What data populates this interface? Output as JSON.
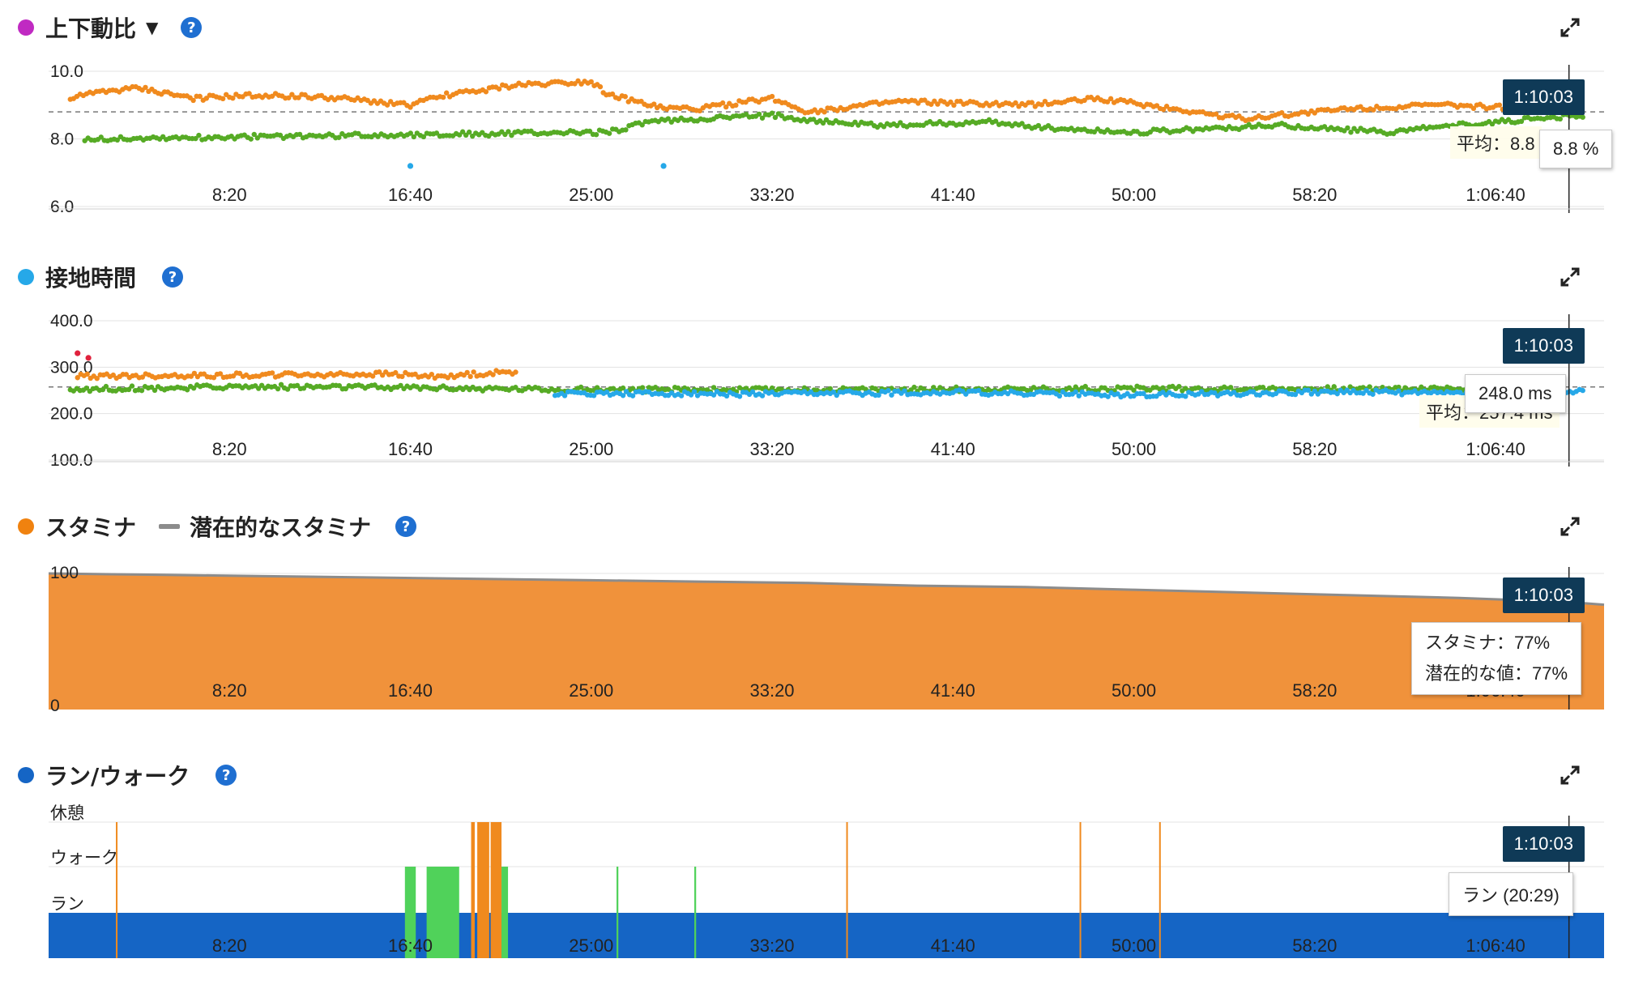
{
  "time_badge": "1:10:03",
  "x_ticks": [
    "8:20",
    "16:40",
    "25:00",
    "33:20",
    "41:40",
    "50:00",
    "58:20",
    "1:06:40"
  ],
  "colors": {
    "orange": "#f08a1e",
    "green": "#56ab25",
    "blue": "#26a8e8",
    "stamina": "#f0923b",
    "walk_green": "#50d25a",
    "run_blue": "#1565c5",
    "help": "#1f6fd1",
    "badge": "#0f3a57"
  },
  "panels": {
    "vo_ratio": {
      "title": "上下動比",
      "dot_color": "#c02ac2",
      "avg_label": "平均：8.8",
      "tooltip": "8.8 %"
    },
    "gct": {
      "title": "接地時間",
      "dot_color": "#26a8e8",
      "avg_label": "平均：257.4 ms",
      "tooltip": "248.0 ms"
    },
    "stamina": {
      "title": "スタミナ",
      "title2": "潜在的なスタミナ",
      "dot_color": "#f0820f",
      "tooltip_line1": "スタミナ：77%",
      "tooltip_line2": "潜在的な値：77%"
    },
    "runwalk": {
      "title": "ラン/ウォーク",
      "dot_color": "#1565c5",
      "tooltip": "ラン (20:29)"
    }
  },
  "chart_data": [
    {
      "type": "scatter",
      "title": "上下動比",
      "unit": "%",
      "y_ticks": [
        "10.0",
        "8.0",
        "6.0"
      ],
      "ylim": [
        6,
        10
      ],
      "xlim_seconds": [
        0,
        4300
      ],
      "average": 8.8,
      "series": [
        {
          "name": "orange",
          "color": "#f08a1e",
          "points": [
            [
              60,
              9.2
            ],
            [
              150,
              9.4
            ],
            [
              250,
              9.5
            ],
            [
              400,
              9.2
            ],
            [
              600,
              9.3
            ],
            [
              800,
              9.2
            ],
            [
              1000,
              9.0
            ],
            [
              1100,
              9.3
            ],
            [
              1300,
              9.6
            ],
            [
              1500,
              9.7
            ],
            [
              1550,
              9.3
            ],
            [
              1700,
              8.9
            ],
            [
              1800,
              8.9
            ],
            [
              2000,
              9.2
            ],
            [
              2100,
              8.8
            ],
            [
              2350,
              9.1
            ],
            [
              2700,
              9.0
            ],
            [
              2900,
              9.2
            ],
            [
              3100,
              8.9
            ],
            [
              3300,
              8.6
            ],
            [
              3600,
              8.9
            ],
            [
              3850,
              9.0
            ],
            [
              4100,
              8.9
            ]
          ]
        },
        {
          "name": "green",
          "color": "#56ab25",
          "points": [
            [
              100,
              8.0
            ],
            [
              1550,
              8.2
            ],
            [
              1650,
              8.5
            ],
            [
              2000,
              8.7
            ],
            [
              2150,
              8.5
            ],
            [
              2300,
              8.4
            ],
            [
              2600,
              8.5
            ],
            [
              2800,
              8.3
            ],
            [
              3000,
              8.2
            ],
            [
              3400,
              8.4
            ],
            [
              3700,
              8.2
            ],
            [
              4000,
              8.5
            ],
            [
              4250,
              8.7
            ]
          ]
        },
        {
          "name": "blue",
          "color": "#26a8e8",
          "points": [
            [
              1000,
              7.2
            ],
            [
              1700,
              7.2
            ]
          ]
        }
      ]
    },
    {
      "type": "scatter",
      "title": "接地時間",
      "unit": "ms",
      "y_ticks": [
        "400.0",
        "300.0",
        "200.0",
        "100.0"
      ],
      "ylim": [
        100,
        400
      ],
      "xlim_seconds": [
        0,
        4300
      ],
      "average": 257.4,
      "series": [
        {
          "name": "green",
          "color": "#56ab25",
          "points": [
            [
              60,
              252
            ],
            [
              500,
              258
            ],
            [
              1000,
              256
            ],
            [
              1400,
              252
            ],
            [
              2000,
              251
            ],
            [
              2500,
              252
            ],
            [
              3000,
              254
            ],
            [
              3500,
              253
            ],
            [
              4000,
              254
            ]
          ]
        },
        {
          "name": "blue",
          "color": "#26a8e8",
          "points": [
            [
              1400,
              244
            ],
            [
              2000,
              242
            ],
            [
              2500,
              246
            ],
            [
              3000,
              240
            ],
            [
              3500,
              247
            ],
            [
              4000,
              244
            ],
            [
              4250,
              248
            ]
          ]
        },
        {
          "name": "orange",
          "color": "#f08a1e",
          "points": [
            [
              80,
              280
            ],
            [
              950,
              285
            ],
            [
              1050,
              280
            ],
            [
              1300,
              290
            ]
          ]
        },
        {
          "name": "red",
          "color": "#e0223d",
          "points": [
            [
              80,
              330
            ],
            [
              110,
              320
            ]
          ]
        }
      ]
    },
    {
      "type": "area",
      "title": "スタミナ",
      "legend": [
        "スタミナ",
        "潜在的なスタミナ"
      ],
      "y_ticks": [
        "100",
        "0"
      ],
      "ylim": [
        0,
        100
      ],
      "xlim_seconds": [
        0,
        4300
      ],
      "series": [
        {
          "name": "スタミナ",
          "color": "#f0923b",
          "x": [
            0,
            300,
            600,
            900,
            1200,
            1500,
            1800,
            2100,
            2400,
            2700,
            3000,
            3300,
            3600,
            3900,
            4200,
            4300
          ],
          "values": [
            100,
            99,
            98,
            97,
            96,
            95,
            94,
            93,
            91,
            90,
            88,
            86,
            84,
            82,
            79,
            77
          ]
        },
        {
          "name": "潜在的なスタミナ",
          "color": "#8c8c8c",
          "x": [
            0,
            300,
            600,
            900,
            1200,
            1500,
            1800,
            2100,
            2400,
            2700,
            3000,
            3300,
            3600,
            3900,
            4200,
            4300
          ],
          "values": [
            100,
            99,
            98,
            97,
            96,
            95,
            94,
            93,
            91,
            90,
            88,
            86,
            84,
            82,
            79,
            77
          ]
        }
      ]
    },
    {
      "type": "bar",
      "title": "ラン/ウォーク",
      "categories": [
        "休憩",
        "ウォーク",
        "ラン"
      ],
      "xlim_seconds": [
        0,
        4300
      ],
      "segments": [
        {
          "state": "ラン",
          "start": 0,
          "end": 4300,
          "color": "#1565c5"
        },
        {
          "state": "ウォーク",
          "start": 985,
          "end": 1015,
          "color": "#50d25a"
        },
        {
          "state": "ウォーク",
          "start": 1045,
          "end": 1135,
          "color": "#50d25a"
        },
        {
          "state": "休憩",
          "start": 1168,
          "end": 1178,
          "color": "#f08a1e"
        },
        {
          "state": "休憩",
          "start": 1185,
          "end": 1218,
          "color": "#f08a1e"
        },
        {
          "state": "休憩",
          "start": 1222,
          "end": 1252,
          "color": "#f08a1e"
        },
        {
          "state": "ウォーク",
          "start": 1252,
          "end": 1270,
          "color": "#50d25a"
        },
        {
          "state": "ウォーク",
          "start": 1570,
          "end": 1575,
          "color": "#50d25a"
        },
        {
          "state": "ウォーク",
          "start": 1785,
          "end": 1790,
          "color": "#50d25a"
        },
        {
          "state": "休憩",
          "start": 186,
          "end": 189,
          "color": "#f08a1e"
        },
        {
          "state": "休憩",
          "start": 2205,
          "end": 2208,
          "color": "#f08a1e"
        },
        {
          "state": "休憩",
          "start": 2850,
          "end": 2853,
          "color": "#f08a1e"
        },
        {
          "state": "休憩",
          "start": 3070,
          "end": 3073,
          "color": "#f08a1e"
        }
      ]
    }
  ]
}
